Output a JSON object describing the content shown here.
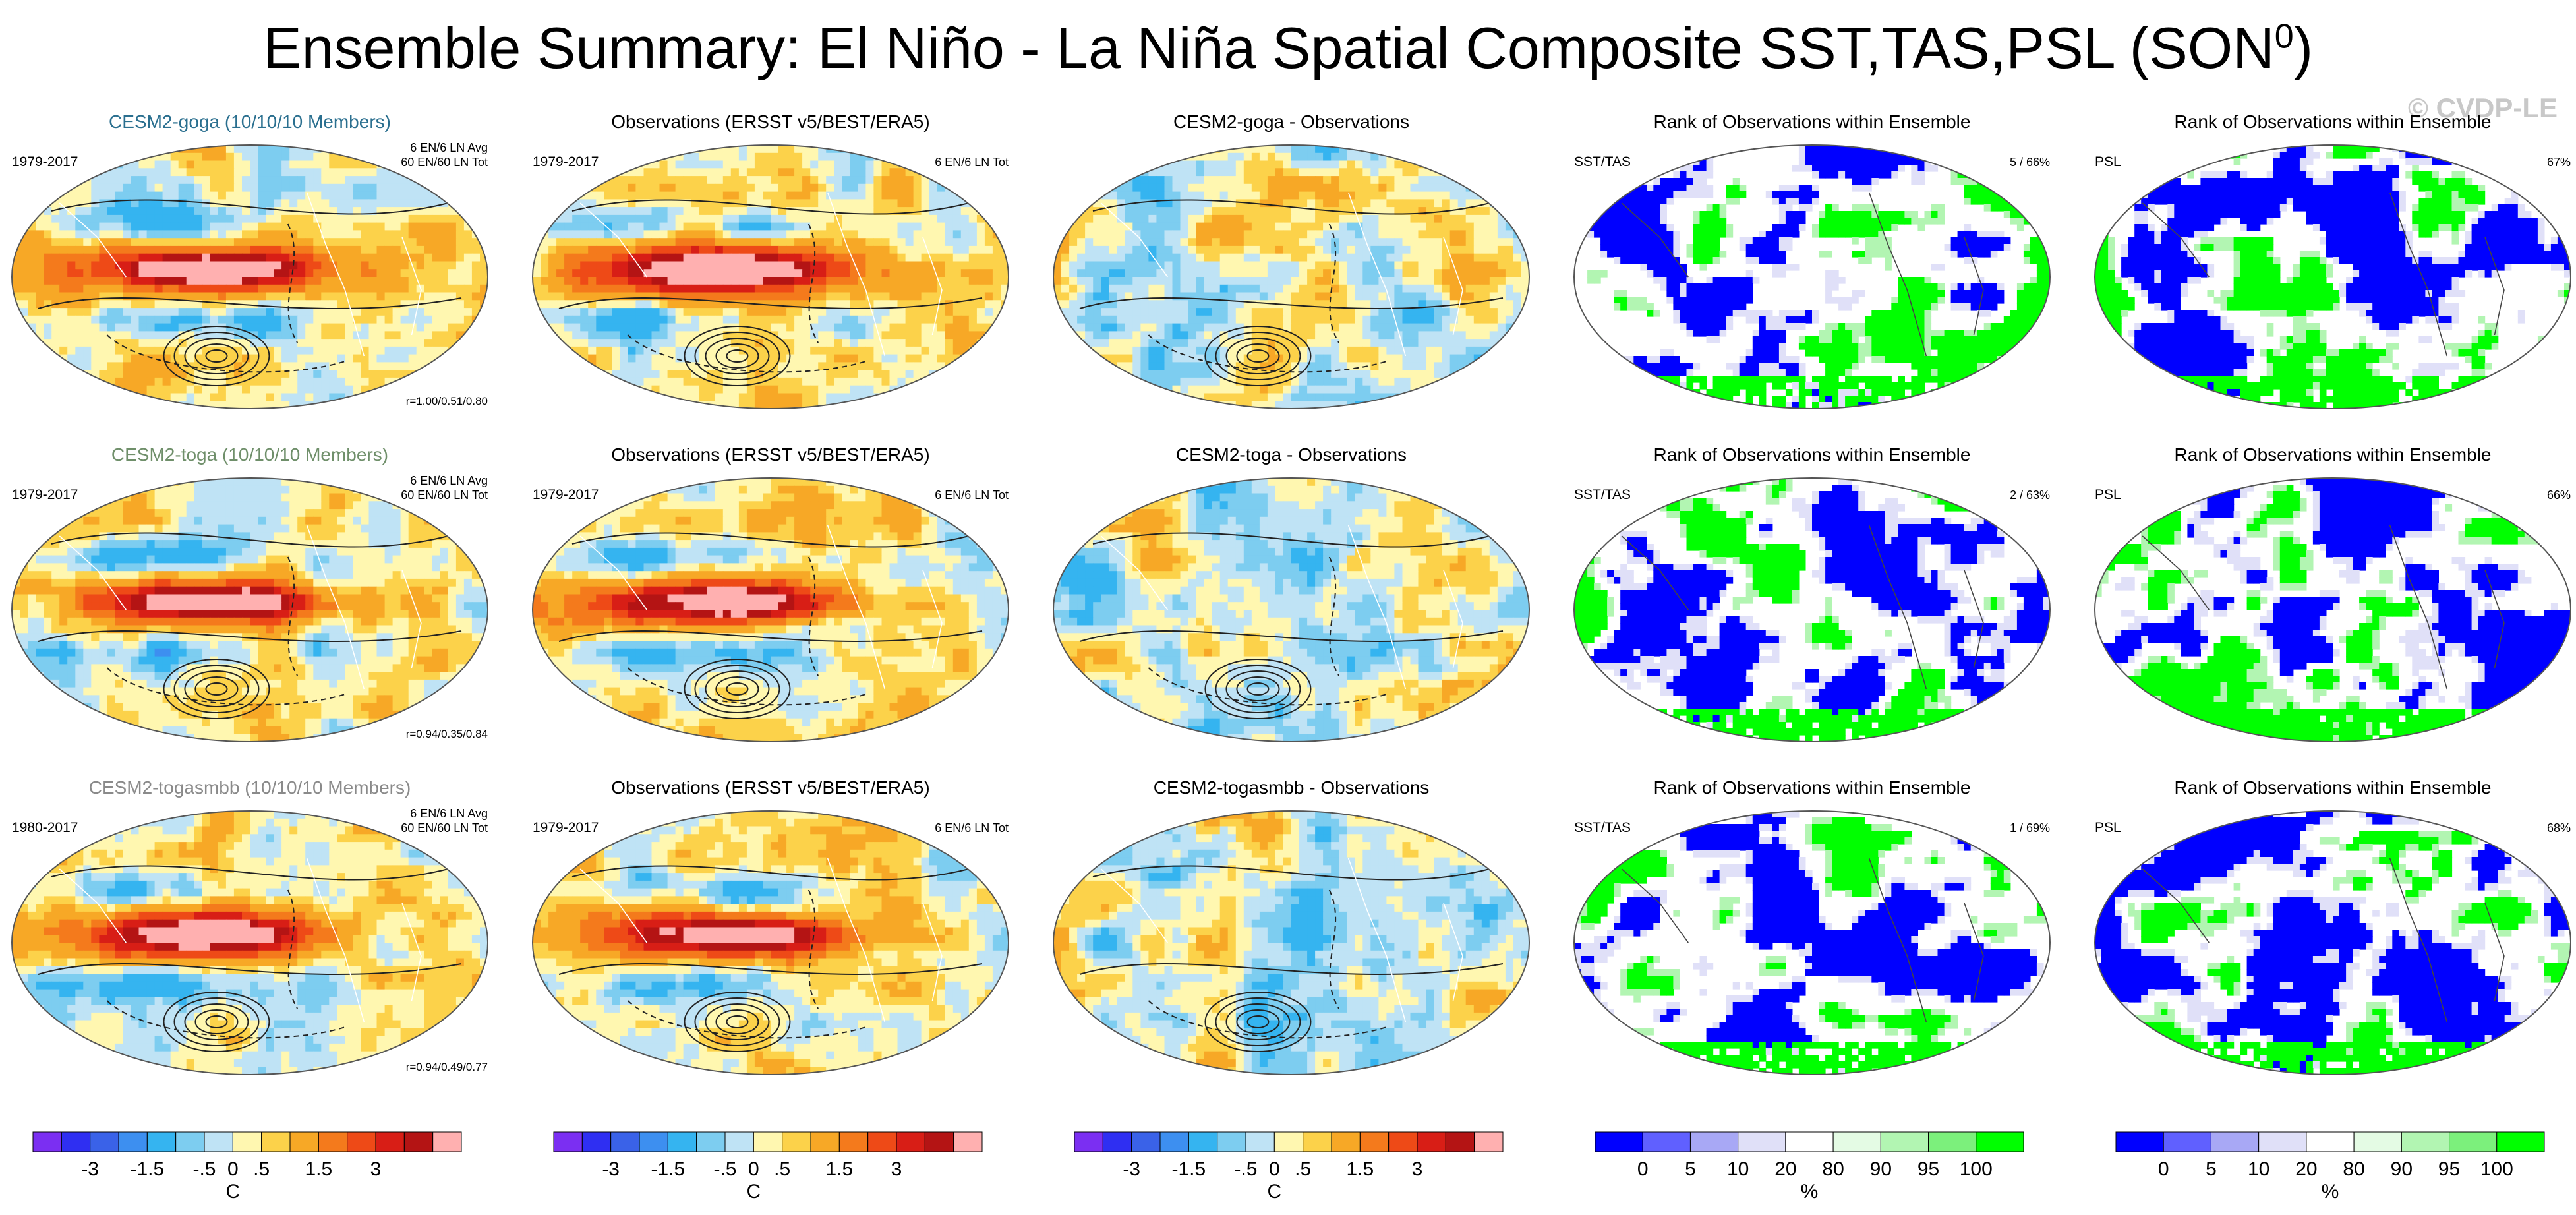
{
  "title": {
    "main": "Ensemble Summary: El Niño - La Niña Spatial Composite SST,TAS,PSL (SON",
    "sup": "0",
    "close": ")"
  },
  "watermark": "© CVDP-LE",
  "colors": {
    "goga_title": "#2a6f8f",
    "toga_title": "#6f8f6a",
    "togasmbb_title": "#8a8a8a",
    "rank_low": "#0000ff",
    "rank_high": "#00ff00",
    "map_border": "#555555"
  },
  "chart_data": [
    {
      "type": "heatmap",
      "title": "CESM2-goga (10/10/10 Members)",
      "left_label": "1979-2017",
      "right_label_1": "6 EN/6 LN Avg",
      "right_label_2": "60 EN/60 LN Tot",
      "corner_label": "r=1.00/0.51/0.80",
      "variant": "model"
    },
    {
      "type": "heatmap",
      "title": "Observations (ERSST v5/BEST/ERA5)",
      "left_label": "1979-2017",
      "right_label_1": "6 EN/6 LN Tot",
      "right_label_2": "",
      "corner_label": "",
      "variant": "obs"
    },
    {
      "type": "heatmap",
      "title": "CESM2-goga - Observations",
      "left_label": "",
      "right_label_1": "",
      "right_label_2": "",
      "corner_label": "",
      "variant": "diff"
    },
    {
      "type": "heatmap",
      "title": "Rank of Observations within Ensemble",
      "left_label": "SST/TAS",
      "right_label_1": "5 /  66%",
      "right_label_2": "",
      "corner_label": "",
      "variant": "rank_sst"
    },
    {
      "type": "heatmap",
      "title": "Rank of Observations within Ensemble",
      "left_label": "PSL",
      "right_label_1": "67%",
      "right_label_2": "",
      "corner_label": "",
      "variant": "rank_psl"
    },
    {
      "type": "heatmap",
      "title": "CESM2-toga (10/10/10 Members)",
      "left_label": "1979-2017",
      "right_label_1": "6 EN/6 LN Avg",
      "right_label_2": "60 EN/60 LN Tot",
      "corner_label": "r=0.94/0.35/0.84",
      "variant": "model"
    },
    {
      "type": "heatmap",
      "title": "Observations (ERSST v5/BEST/ERA5)",
      "left_label": "1979-2017",
      "right_label_1": "6 EN/6 LN Tot",
      "right_label_2": "",
      "corner_label": "",
      "variant": "obs"
    },
    {
      "type": "heatmap",
      "title": "CESM2-toga - Observations",
      "left_label": "",
      "right_label_1": "",
      "right_label_2": "",
      "corner_label": "",
      "variant": "diff"
    },
    {
      "type": "heatmap",
      "title": "Rank of Observations within Ensemble",
      "left_label": "SST/TAS",
      "right_label_1": "2 /  63%",
      "right_label_2": "",
      "corner_label": "",
      "variant": "rank_sst"
    },
    {
      "type": "heatmap",
      "title": "Rank of Observations within Ensemble",
      "left_label": "PSL",
      "right_label_1": "66%",
      "right_label_2": "",
      "corner_label": "",
      "variant": "rank_psl"
    },
    {
      "type": "heatmap",
      "title": "CESM2-togasmbb (10/10/10 Members)",
      "left_label": "1980-2017",
      "right_label_1": "6 EN/6 LN Avg",
      "right_label_2": "60 EN/60 LN Tot",
      "corner_label": "r=0.94/0.49/0.77",
      "variant": "model"
    },
    {
      "type": "heatmap",
      "title": "Observations (ERSST v5/BEST/ERA5)",
      "left_label": "1979-2017",
      "right_label_1": "6 EN/6 LN Tot",
      "right_label_2": "",
      "corner_label": "",
      "variant": "obs"
    },
    {
      "type": "heatmap",
      "title": "CESM2-togasmbb - Observations",
      "left_label": "",
      "right_label_1": "",
      "right_label_2": "",
      "corner_label": "",
      "variant": "diff"
    },
    {
      "type": "heatmap",
      "title": "Rank of Observations within Ensemble",
      "left_label": "SST/TAS",
      "right_label_1": "1 /  69%",
      "right_label_2": "",
      "corner_label": "",
      "variant": "rank_sst"
    },
    {
      "type": "heatmap",
      "title": "Rank of Observations within Ensemble",
      "left_label": "PSL",
      "right_label_1": "68%",
      "right_label_2": "",
      "corner_label": "",
      "variant": "rank_psl"
    }
  ],
  "colorbars": [
    {
      "kind": "temp",
      "ticks": [
        "-3",
        "-1.5",
        "-.5",
        "0",
        ".5",
        "1.5",
        "3"
      ],
      "unit": "C",
      "colors": [
        "#7b2ff2",
        "#2f2ff2",
        "#3a62e8",
        "#3d8ff0",
        "#35b4f0",
        "#7dcdf0",
        "#bfe3f5",
        "#fff7b0",
        "#fcd24a",
        "#f7a826",
        "#f47a1c",
        "#ee4a17",
        "#d81e16",
        "#b41414",
        "#ffb0b0"
      ]
    },
    {
      "kind": "temp",
      "ticks": [
        "-3",
        "-1.5",
        "-.5",
        "0",
        ".5",
        "1.5",
        "3"
      ],
      "unit": "C",
      "colors": [
        "#7b2ff2",
        "#2f2ff2",
        "#3a62e8",
        "#3d8ff0",
        "#35b4f0",
        "#7dcdf0",
        "#bfe3f5",
        "#fff7b0",
        "#fcd24a",
        "#f7a826",
        "#f47a1c",
        "#ee4a17",
        "#d81e16",
        "#b41414",
        "#ffb0b0"
      ]
    },
    {
      "kind": "temp",
      "ticks": [
        "-3",
        "-1.5",
        "-.5",
        "0",
        ".5",
        "1.5",
        "3"
      ],
      "unit": "C",
      "colors": [
        "#7b2ff2",
        "#2f2ff2",
        "#3a62e8",
        "#3d8ff0",
        "#35b4f0",
        "#7dcdf0",
        "#bfe3f5",
        "#fff7b0",
        "#fcd24a",
        "#f7a826",
        "#f47a1c",
        "#ee4a17",
        "#d81e16",
        "#b41414",
        "#ffb0b0"
      ]
    },
    {
      "kind": "rank",
      "ticks": [
        "0",
        "5",
        "10",
        "20",
        "80",
        "90",
        "95",
        "100"
      ],
      "unit": "%",
      "colors": [
        "#0000ff",
        "#6060ff",
        "#a8a8f5",
        "#e0e0f8",
        "#ffffff",
        "#e4fbe4",
        "#b2f5b2",
        "#7cf07c",
        "#00ff00"
      ]
    },
    {
      "kind": "rank",
      "ticks": [
        "0",
        "5",
        "10",
        "20",
        "80",
        "90",
        "95",
        "100"
      ],
      "unit": "%",
      "colors": [
        "#0000ff",
        "#6060ff",
        "#a8a8f5",
        "#e0e0f8",
        "#ffffff",
        "#e4fbe4",
        "#b2f5b2",
        "#7cf07c",
        "#00ff00"
      ]
    }
  ]
}
